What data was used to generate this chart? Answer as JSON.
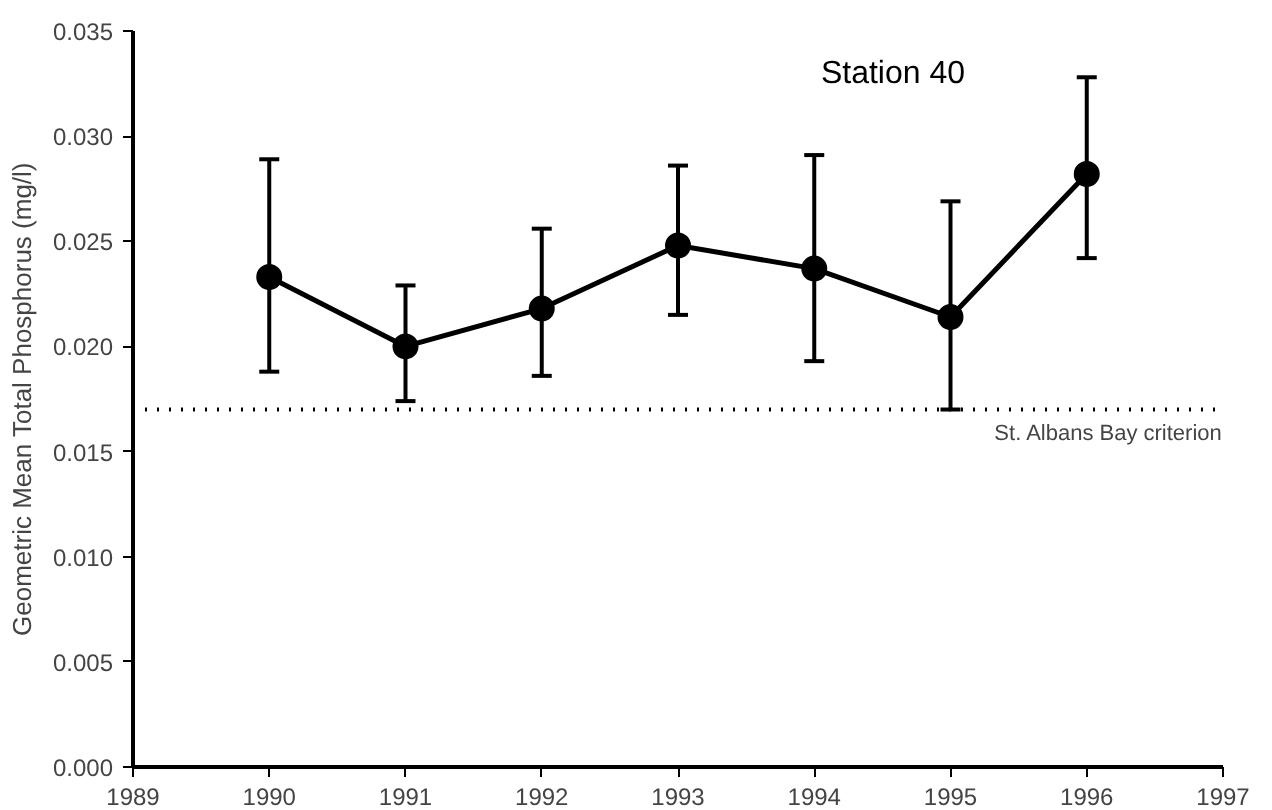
{
  "chart_data": {
    "type": "line",
    "ylabel": "Geometric Mean Total Phosphorus (mg/l)",
    "x": [
      1990,
      1991,
      1992,
      1993,
      1994,
      1995,
      1996
    ],
    "series": [
      {
        "color": "#000000",
        "values": [
          0.0233,
          0.02,
          0.0218,
          0.0248,
          0.0237,
          0.0214,
          0.0282
        ],
        "errors": [
          [
            0.0188,
            0.0289
          ],
          [
            0.0174,
            0.0229
          ],
          [
            0.0186,
            0.0256
          ],
          [
            0.0215,
            0.0286
          ],
          [
            0.0193,
            0.0291
          ],
          [
            0.017,
            0.0269
          ],
          [
            0.0242,
            0.0328
          ]
        ]
      }
    ],
    "xlim": [
      1989,
      1997
    ],
    "xticks": [
      1989,
      1990,
      1991,
      1992,
      1993,
      1994,
      1995,
      1996,
      1997
    ],
    "ylim": [
      0,
      0.035
    ],
    "yticks": [
      {
        "value": 0,
        "label": "0.000"
      },
      {
        "value": 0.005,
        "label": "0.005"
      },
      {
        "value": 0.01,
        "label": "0.010"
      },
      {
        "value": 0.015,
        "label": "0.015"
      },
      {
        "value": 0.02,
        "label": "0.020"
      },
      {
        "value": 0.025,
        "label": "0.025"
      },
      {
        "value": 0.03,
        "label": "0.030"
      },
      {
        "value": 0.035,
        "label": "0.035"
      }
    ],
    "ref_lines": [
      {
        "axis": "y",
        "value": 0.017,
        "label": "St. Albans Bay criterion",
        "color": "#000000",
        "line_style": "dotted"
      }
    ],
    "annotations": [
      "Station 40"
    ],
    "marker": "circle",
    "line_style": "solid",
    "grid": false
  }
}
